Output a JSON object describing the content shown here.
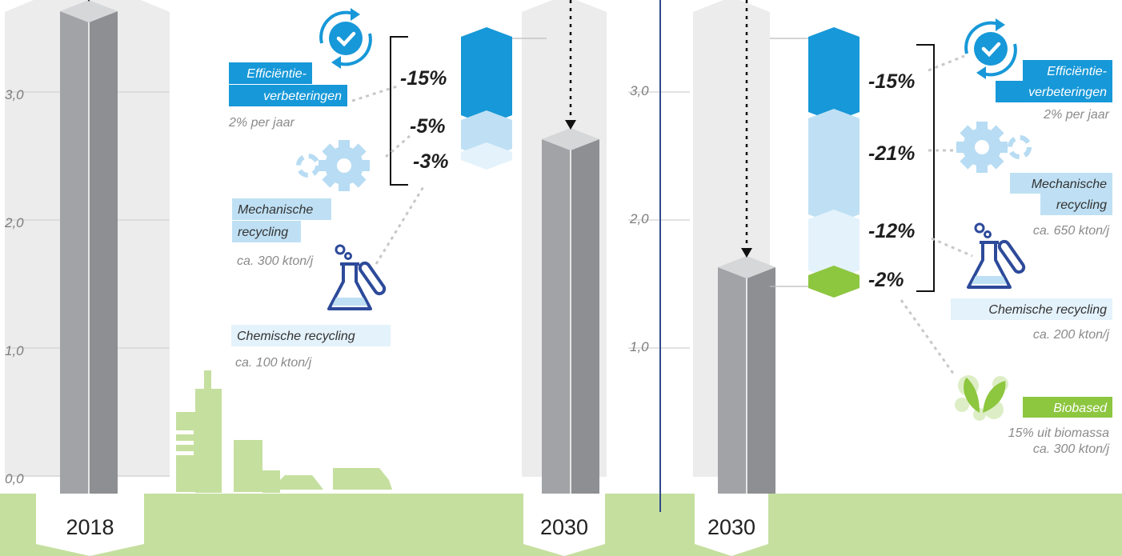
{
  "chart_data": {
    "type": "bar",
    "ylim": [
      0,
      3.5
    ],
    "y_ticks": [
      "0,0",
      "1,0",
      "2,0",
      "3,0"
    ],
    "bars": [
      {
        "year": "2018",
        "value": 3.65
      },
      {
        "year": "2030",
        "value": 2.65
      },
      {
        "year": "2030",
        "value": 1.65
      }
    ],
    "scenarios": [
      {
        "segments": [
          {
            "label": "-15%",
            "color": "#1798d8"
          },
          {
            "label": "-5%",
            "color": "#bfe0f4"
          },
          {
            "label": "-3%",
            "color": "#e4f2fb"
          }
        ],
        "annotations": [
          {
            "title": "Efficiëntie-\nverbeteringen",
            "detail": "2% per jaar",
            "icon": "efficiency-icon"
          },
          {
            "title": "Mechanische\nrecycling",
            "detail": "ca. 300 kton/j",
            "icon": "gear-recycle-icon"
          },
          {
            "title": "Chemische recycling",
            "detail": "ca. 100 kton/j",
            "icon": "flask-icon"
          }
        ]
      },
      {
        "segments": [
          {
            "label": "-15%",
            "color": "#1798d8"
          },
          {
            "label": "-21%",
            "color": "#bfe0f4"
          },
          {
            "label": "-12%",
            "color": "#e4f2fb"
          },
          {
            "label": "-2%",
            "color": "#8dc63f"
          }
        ],
        "annotations": [
          {
            "title": "Efficiëntie-\nverbeteringen",
            "detail": "2% per jaar",
            "icon": "efficiency-icon"
          },
          {
            "title": "Mechanische\nrecycling",
            "detail": "ca. 650 kton/j",
            "icon": "gear-recycle-icon"
          },
          {
            "title": "Chemische recycling",
            "detail": "ca. 200 kton/j",
            "icon": "flask-icon"
          },
          {
            "title": "Biobased",
            "detail": "15% uit biomassa\nca. 300 kton/j",
            "icon": "leaf-icon"
          }
        ]
      }
    ]
  },
  "colors": {
    "bar": "#a2a3a6",
    "bar_dark": "#8e8f92",
    "bar_top": "#d6d7d9",
    "ground": "#c5df9f",
    "city": "#c5df9f",
    "efficiency": "#1798d8",
    "mechanical": "#bfe0f4",
    "chemical": "#e4f2fb",
    "biobased": "#8dc63f",
    "divider": "#2f4a8a",
    "tab": "#ececec"
  }
}
